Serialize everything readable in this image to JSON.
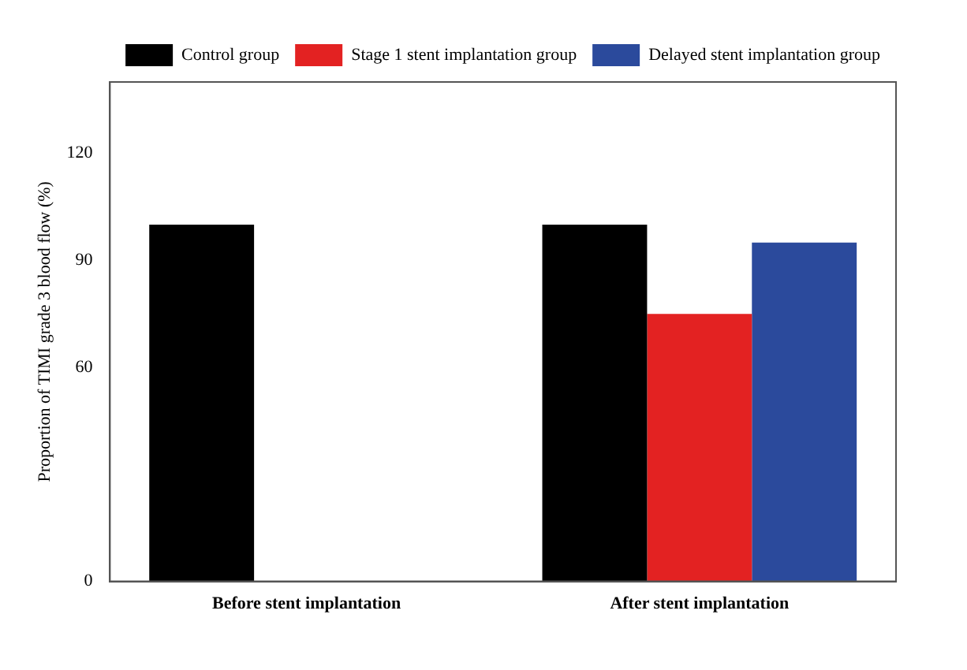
{
  "chart_data": {
    "type": "bar",
    "xlabel": null,
    "ylabel": "Proportion of TIMI grade 3 blood flow (%)",
    "categories": [
      "Before stent implantation",
      "After stent implantation"
    ],
    "series": [
      {
        "name": "Control group",
        "color": "#000000",
        "values": [
          100,
          100
        ]
      },
      {
        "name": "Stage 1 stent implantation group",
        "color": "#e32222",
        "values": [
          null,
          75
        ]
      },
      {
        "name": "Delayed stent implantation group",
        "color": "#2b4a9c",
        "values": [
          null,
          95
        ]
      }
    ],
    "ylim": [
      0,
      140
    ],
    "yticks": [
      0,
      60,
      90,
      120
    ],
    "grid": false,
    "legend": "top right"
  }
}
